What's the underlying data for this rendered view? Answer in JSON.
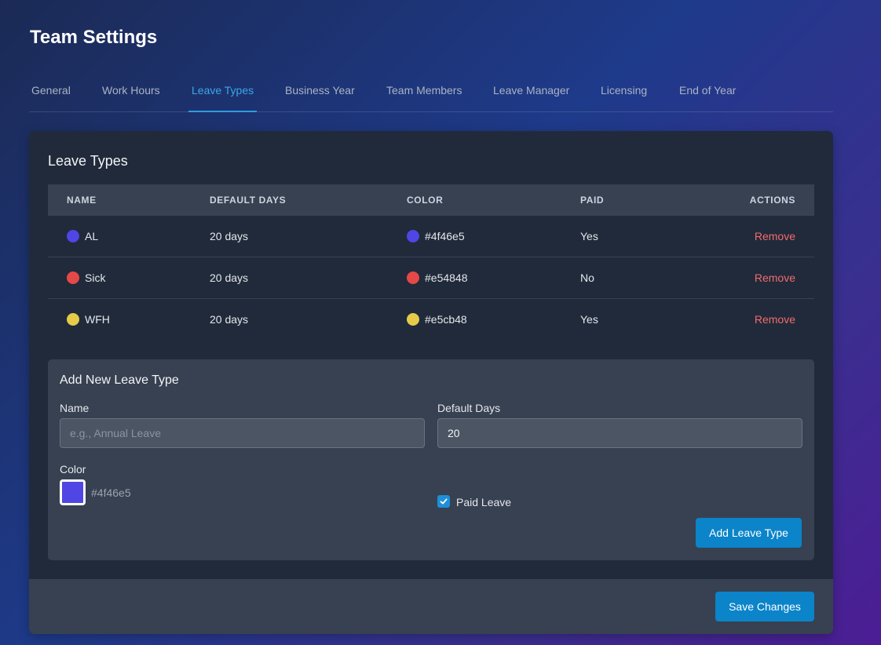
{
  "page": {
    "title": "Team Settings"
  },
  "tabs": [
    {
      "label": "General"
    },
    {
      "label": "Work Hours"
    },
    {
      "label": "Leave Types",
      "active": true
    },
    {
      "label": "Business Year"
    },
    {
      "label": "Team Members"
    },
    {
      "label": "Leave Manager"
    },
    {
      "label": "Licensing"
    },
    {
      "label": "End of Year"
    }
  ],
  "leave_types": {
    "title": "Leave Types",
    "columns": [
      "NAME",
      "DEFAULT DAYS",
      "COLOR",
      "PAID",
      "ACTIONS"
    ],
    "rows": [
      {
        "name": "AL",
        "days": "20 days",
        "color": "#4f46e5",
        "paid": "Yes",
        "action": "Remove"
      },
      {
        "name": "Sick",
        "days": "20 days",
        "color": "#e54848",
        "paid": "No",
        "action": "Remove"
      },
      {
        "name": "WFH",
        "days": "20 days",
        "color": "#e5cb48",
        "paid": "Yes",
        "action": "Remove"
      }
    ]
  },
  "add_form": {
    "title": "Add New Leave Type",
    "name_label": "Name",
    "name_placeholder": "e.g., Annual Leave",
    "name_value": "",
    "days_label": "Default Days",
    "days_value": "20",
    "color_label": "Color",
    "color_value": "#4f46e5",
    "paid_label": "Paid Leave",
    "paid_checked": true,
    "submit_label": "Add Leave Type"
  },
  "footer": {
    "save_label": "Save Changes"
  },
  "colors": {
    "accent": "#0b84c9",
    "active_tab": "#3ba7e6",
    "danger": "#f26b6b"
  }
}
